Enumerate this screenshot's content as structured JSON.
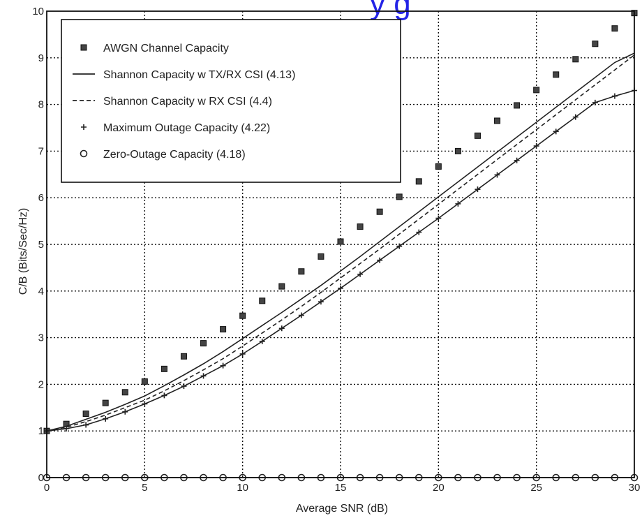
{
  "title_fragment": "y g",
  "chart_data": {
    "type": "line",
    "xlabel": "Average SNR (dB)",
    "ylabel": "C/B (Bits/Sec/Hz)",
    "xlim": [
      0,
      30
    ],
    "ylim": [
      0,
      10
    ],
    "xticks": [
      0,
      5,
      10,
      15,
      20,
      25,
      30
    ],
    "yticks": [
      0,
      1,
      2,
      3,
      4,
      5,
      6,
      7,
      8,
      9,
      10
    ],
    "grid": true,
    "legend_position": "top-left",
    "x": [
      0,
      1,
      2,
      3,
      4,
      5,
      6,
      7,
      8,
      9,
      10,
      11,
      12,
      13,
      14,
      15,
      16,
      17,
      18,
      19,
      20,
      21,
      22,
      23,
      24,
      25,
      26,
      27,
      28,
      29,
      30
    ],
    "series": [
      {
        "name": "AWGN Channel Capacity",
        "marker": "square",
        "line": "none",
        "values": [
          1.0,
          1.15,
          1.37,
          1.6,
          1.83,
          2.06,
          2.33,
          2.6,
          2.88,
          3.18,
          3.47,
          3.79,
          4.1,
          4.42,
          4.74,
          5.06,
          5.38,
          5.7,
          6.02,
          6.35,
          6.67,
          7.0,
          7.33,
          7.65,
          7.98,
          8.31,
          8.64,
          8.97,
          9.3,
          9.63,
          9.96
        ]
      },
      {
        "name": "Shannon Capacity w TX/RX CSI (4.13)",
        "marker": "none",
        "line": "solid",
        "values": [
          1.0,
          1.1,
          1.25,
          1.4,
          1.57,
          1.75,
          1.97,
          2.2,
          2.44,
          2.7,
          2.98,
          3.26,
          3.54,
          3.83,
          4.12,
          4.43,
          4.74,
          5.06,
          5.38,
          5.7,
          6.02,
          6.34,
          6.66,
          6.98,
          7.3,
          7.62,
          7.94,
          8.26,
          8.58,
          8.9,
          9.1
        ]
      },
      {
        "name": "Shannon Capacity w RX CSI (4.4)",
        "marker": "none",
        "line": "dashed",
        "values": [
          1.0,
          1.08,
          1.2,
          1.34,
          1.5,
          1.66,
          1.86,
          2.08,
          2.31,
          2.55,
          2.82,
          3.1,
          3.38,
          3.67,
          3.97,
          4.28,
          4.59,
          4.9,
          5.22,
          5.54,
          5.86,
          6.18,
          6.5,
          6.82,
          7.14,
          7.46,
          7.78,
          8.1,
          8.42,
          8.74,
          9.06
        ]
      },
      {
        "name": "Maximum Outage Capacity (4.22)",
        "marker": "plus",
        "line": "solid",
        "values": [
          1.0,
          1.05,
          1.13,
          1.26,
          1.41,
          1.58,
          1.76,
          1.96,
          2.18,
          2.4,
          2.65,
          2.92,
          3.2,
          3.48,
          3.77,
          4.06,
          4.36,
          4.66,
          4.96,
          5.26,
          5.56,
          5.87,
          6.18,
          6.49,
          6.8,
          7.11,
          7.42,
          7.73,
          8.04,
          8.18,
          8.3
        ]
      },
      {
        "name": "Zero-Outage Capacity (4.18)",
        "marker": "circle",
        "line": "solid",
        "values": [
          0,
          0,
          0,
          0,
          0,
          0,
          0,
          0,
          0,
          0,
          0,
          0,
          0,
          0,
          0,
          0,
          0,
          0,
          0,
          0,
          0,
          0,
          0,
          0,
          0,
          0,
          0,
          0,
          0,
          0,
          0
        ]
      }
    ]
  }
}
